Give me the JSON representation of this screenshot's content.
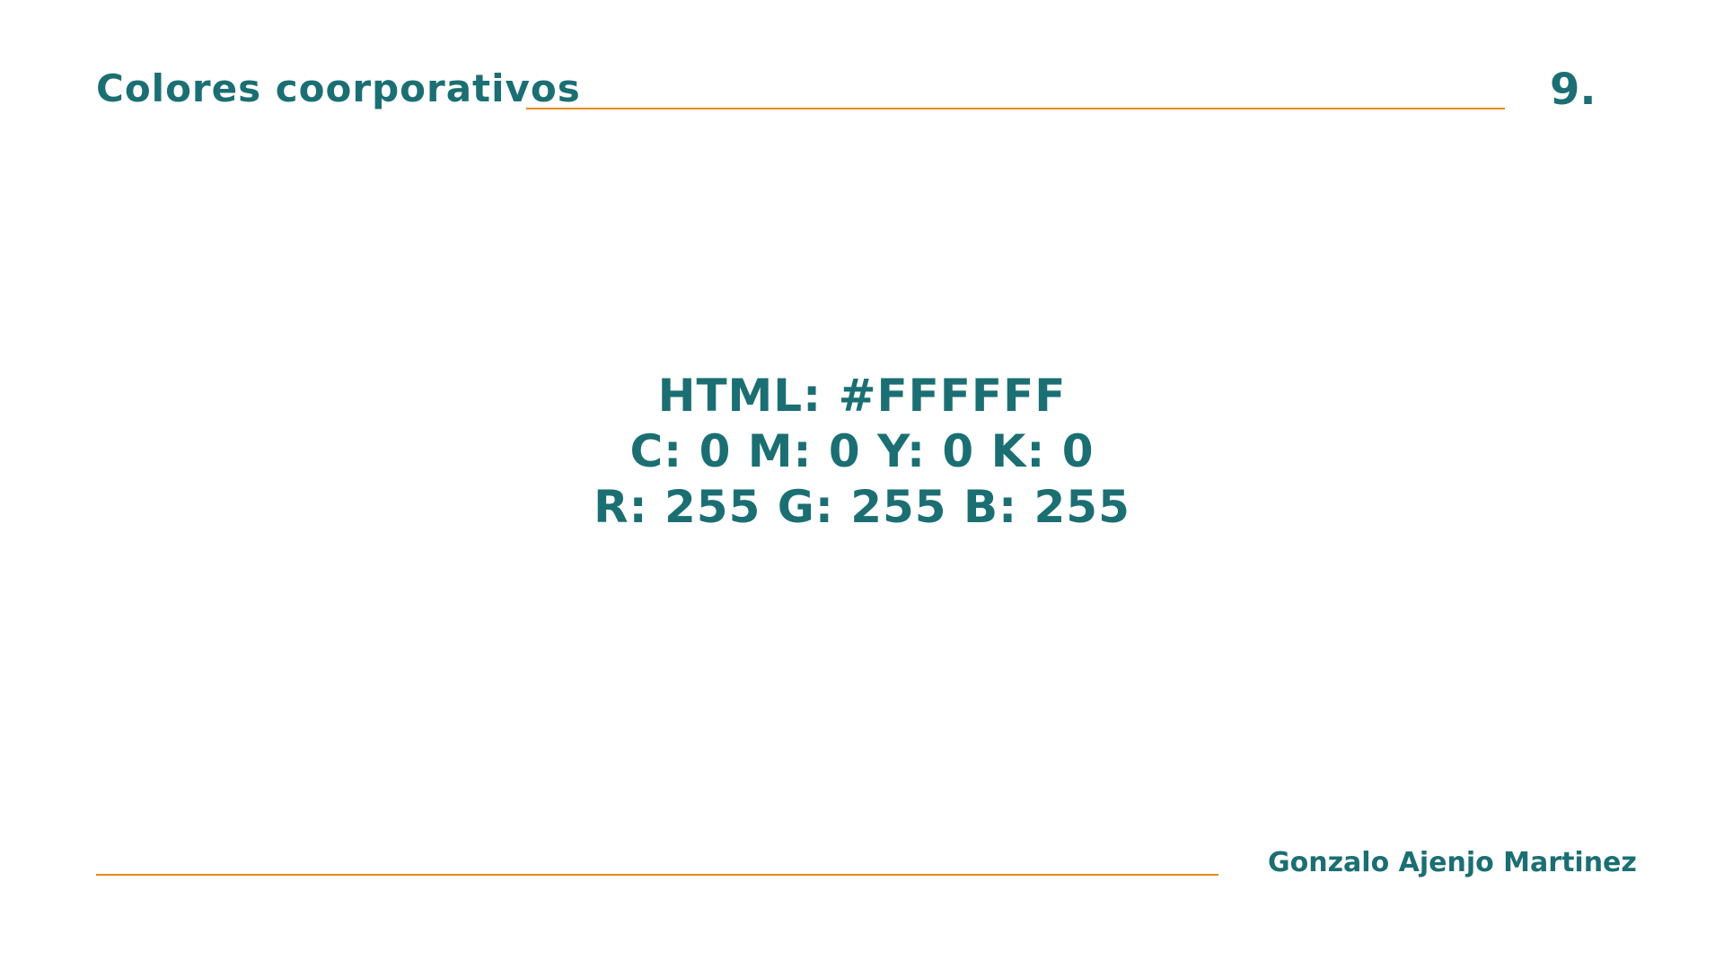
{
  "header": {
    "title": "Colores coorporativos",
    "page_number": "9."
  },
  "color_spec": {
    "html_line": "HTML: #FFFFFF",
    "cmyk_line": "C: 0 M: 0 Y: 0 K: 0",
    "rgb_line": "R: 255 G: 255 B: 255"
  },
  "footer": {
    "author": "Gonzalo Ajenjo Martinez"
  },
  "colors": {
    "text_teal": "#1b6f73",
    "rule_orange": "#e8891c",
    "background": "#ffffff"
  }
}
